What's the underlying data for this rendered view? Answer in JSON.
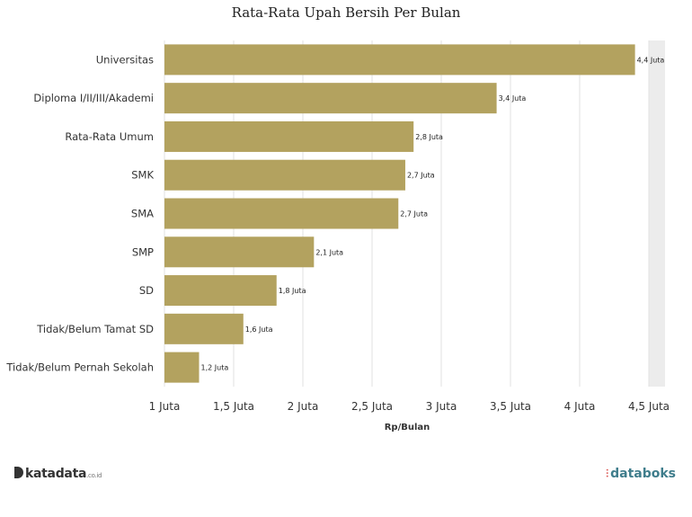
{
  "chart_data": {
    "type": "bar",
    "orientation": "horizontal",
    "title": "Rata-Rata Upah Bersih Per Bulan",
    "xlabel": "Rp/Bulan",
    "categories": [
      "Universitas",
      "Diploma I/II/III/Akademi",
      "Rata-Rata Umum",
      "SMK",
      "SMA",
      "SMP",
      "SD",
      "Tidak/Belum Tamat SD",
      "Tidak/Belum Pernah Sekolah"
    ],
    "values": [
      4.4,
      3.4,
      2.8,
      2.74,
      2.69,
      2.08,
      1.81,
      1.57,
      1.25
    ],
    "value_labels": [
      "4,4 Juta",
      "3,4 Juta",
      "2,8 Juta",
      "2,7 Juta",
      "2,7 Juta",
      "2,1 Juta",
      "1,8 Juta",
      "1,6 Juta",
      "1,2 Juta"
    ],
    "xlim": [
      1,
      4.5
    ],
    "ticks": [
      1,
      1.5,
      2,
      2.5,
      3,
      3.5,
      4,
      4.5
    ],
    "tick_labels": [
      "1 Juta",
      "1,5 Juta",
      "2 Juta",
      "2,5 Juta",
      "3 Juta",
      "3,5 Juta",
      "4 Juta",
      "4,5 Juta"
    ],
    "grid": true,
    "bar_color": "#b3a25f"
  },
  "footer": {
    "left_brand": "katadata",
    "left_domain": ".co.id",
    "right_brand": "databoks"
  }
}
